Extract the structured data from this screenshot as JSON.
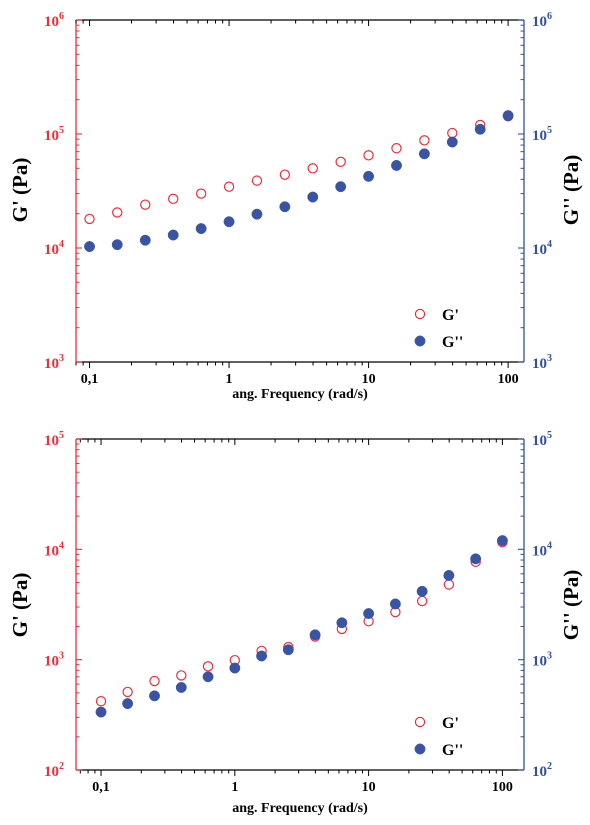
{
  "chart_data": [
    {
      "type": "scatter",
      "xlabel": "ang. Frequency (rad/s)",
      "ylabel_left": "G' (Pa)",
      "ylabel_right": "G'' (Pa)",
      "x_scale": "log",
      "y_scale": "log",
      "xlim": [
        0.08,
        130
      ],
      "ylim": [
        1000,
        1000000
      ],
      "x_ticks": [
        {
          "value": 0.1,
          "label": "0,1"
        },
        {
          "value": 1,
          "label": "1"
        },
        {
          "value": 10,
          "label": "10"
        },
        {
          "value": 100,
          "label": "100"
        }
      ],
      "y_ticks": [
        {
          "value": 1000,
          "base": "10",
          "exp": "3"
        },
        {
          "value": 10000,
          "base": "10",
          "exp": "4"
        },
        {
          "value": 100000,
          "base": "10",
          "exp": "5"
        },
        {
          "value": 1000000,
          "base": "10",
          "exp": "6"
        }
      ],
      "legend": "bottom-right",
      "grid": false,
      "colors": {
        "left_axis": "#e8303a",
        "right_axis": "#34509a",
        "series_g1": "#e8303a",
        "series_g2": "#3a54a4"
      },
      "series": [
        {
          "name": "G'",
          "marker": "open-circle",
          "x": [
            0.1,
            0.158,
            0.251,
            0.398,
            0.631,
            1,
            1.585,
            2.512,
            3.981,
            6.31,
            10,
            15.85,
            25.12,
            39.81,
            63.1,
            100
          ],
          "y": [
            18000,
            20500,
            24000,
            27000,
            30000,
            34500,
            39000,
            44000,
            50000,
            57000,
            65000,
            75000,
            88000,
            102000,
            120000,
            143000
          ]
        },
        {
          "name": "G''",
          "marker": "filled-circle",
          "x": [
            0.1,
            0.158,
            0.251,
            0.398,
            0.631,
            1,
            1.585,
            2.512,
            3.981,
            6.31,
            10,
            15.85,
            25.12,
            39.81,
            63.1,
            100
          ],
          "y": [
            10300,
            10700,
            11700,
            13000,
            14800,
            17000,
            19800,
            23000,
            28000,
            34500,
            42500,
            53000,
            67000,
            85000,
            110000,
            145000
          ]
        }
      ]
    },
    {
      "type": "scatter",
      "xlabel": "ang. Frequency (rad/s)",
      "ylabel_left": "G' (Pa)",
      "ylabel_right": "G'' (Pa)",
      "x_scale": "log",
      "y_scale": "log",
      "xlim": [
        0.065,
        145
      ],
      "ylim": [
        100,
        100000
      ],
      "x_ticks": [
        {
          "value": 0.1,
          "label": "0,1"
        },
        {
          "value": 1,
          "label": "1"
        },
        {
          "value": 10,
          "label": "10"
        },
        {
          "value": 100,
          "label": "100"
        }
      ],
      "y_ticks": [
        {
          "value": 100,
          "base": "10",
          "exp": "2"
        },
        {
          "value": 1000,
          "base": "10",
          "exp": "3"
        },
        {
          "value": 10000,
          "base": "10",
          "exp": "4"
        },
        {
          "value": 100000,
          "base": "10",
          "exp": "5"
        }
      ],
      "legend": "bottom-right",
      "grid": false,
      "colors": {
        "left_axis": "#e8303a",
        "right_axis": "#34509a",
        "series_g1": "#e8303a",
        "series_g2": "#3a54a4"
      },
      "series": [
        {
          "name": "G'",
          "marker": "open-circle",
          "x": [
            0.1,
            0.158,
            0.251,
            0.398,
            0.631,
            1,
            1.585,
            2.512,
            3.981,
            6.31,
            10,
            15.85,
            25.12,
            39.81,
            63.1,
            100
          ],
          "y": [
            420,
            510,
            640,
            720,
            870,
            990,
            1200,
            1300,
            1620,
            1900,
            2230,
            2700,
            3400,
            4800,
            7700,
            11600
          ]
        },
        {
          "name": "G''",
          "marker": "filled-circle",
          "x": [
            0.1,
            0.158,
            0.251,
            0.398,
            0.631,
            1,
            1.585,
            2.512,
            3.981,
            6.31,
            10,
            15.85,
            25.12,
            39.81,
            63.1,
            100
          ],
          "y": [
            335,
            400,
            470,
            560,
            700,
            840,
            1080,
            1230,
            1680,
            2160,
            2620,
            3200,
            4160,
            5800,
            8200,
            12000
          ]
        }
      ]
    }
  ]
}
